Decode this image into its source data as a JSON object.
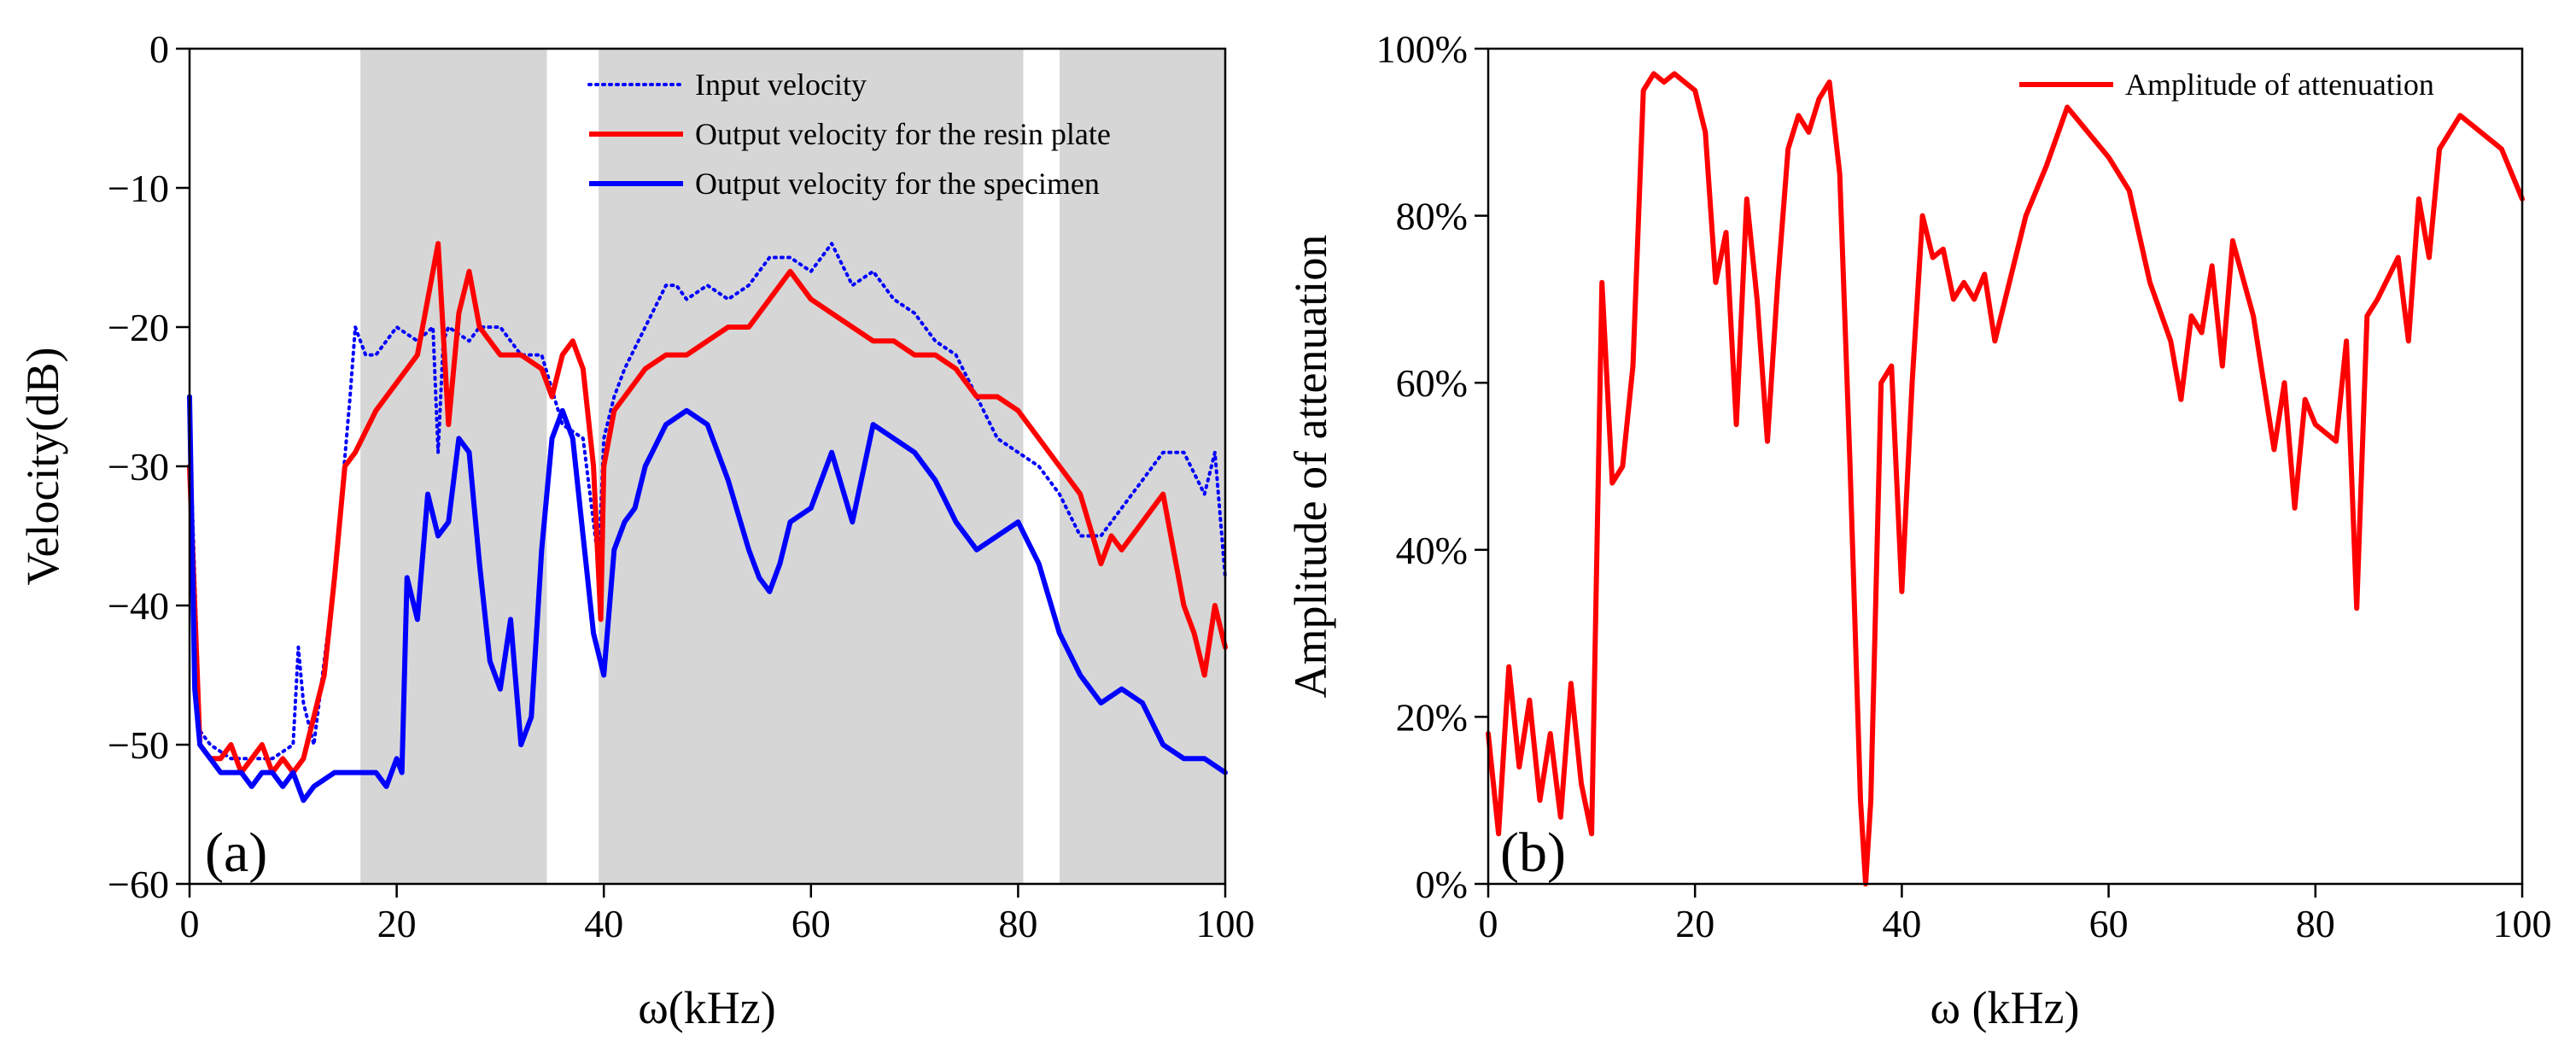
{
  "chart_data": [
    {
      "panel": "(a)",
      "type": "line",
      "xlabel": "ω(kHz)",
      "ylabel": "Velocity(dB)",
      "xlim": [
        0,
        100
      ],
      "ylim": [
        -60,
        0
      ],
      "xticks": [
        0,
        20,
        40,
        60,
        80,
        100
      ],
      "yticks": [
        0,
        -10,
        -20,
        -30,
        -40,
        -50,
        -60
      ],
      "ytick_labels": [
        "0",
        "−10",
        "−20",
        "−30",
        "−40",
        "−50",
        "−60"
      ],
      "shaded_bands": [
        [
          16.5,
          34.5
        ],
        [
          39.5,
          80.5
        ],
        [
          84,
          100
        ]
      ],
      "legend_position": "top-right",
      "series": [
        {
          "name": "Input velocity",
          "style": "dotted",
          "color": "#0000ff",
          "x": [
            0,
            1,
            2,
            4,
            6,
            8,
            10,
            10.5,
            11,
            12,
            14,
            15.5,
            16,
            16.5,
            17,
            18,
            20,
            22,
            23.5,
            24,
            24.5,
            25,
            27,
            28,
            30,
            32,
            34,
            36,
            38,
            39.5,
            40,
            41,
            42,
            44,
            46,
            47,
            48,
            50,
            52,
            54,
            56,
            58,
            60,
            62,
            64,
            66,
            68,
            70,
            72,
            74,
            76,
            78,
            80,
            82,
            84,
            86,
            88,
            90,
            92,
            94,
            96,
            98,
            99,
            100
          ],
          "y": [
            -27,
            -49,
            -50,
            -51,
            -51,
            -51,
            -50,
            -43,
            -47,
            -50,
            -38,
            -25,
            -20,
            -21,
            -22,
            -22,
            -20,
            -21,
            -20,
            -29,
            -21,
            -20,
            -21,
            -20,
            -20,
            -22,
            -22,
            -27,
            -28,
            -37,
            -28,
            -25,
            -23,
            -20,
            -17,
            -17,
            -18,
            -17,
            -18,
            -17,
            -15,
            -15,
            -16,
            -14,
            -17,
            -16,
            -18,
            -19,
            -21,
            -22,
            -25,
            -28,
            -29,
            -30,
            -32,
            -35,
            -35,
            -33,
            -31,
            -29,
            -29,
            -32,
            -29,
            -38
          ]
        },
        {
          "name": "Output velocity for the resin plate",
          "style": "solid",
          "color": "#ff0000",
          "x": [
            0,
            1,
            2,
            3,
            4,
            5,
            6,
            7,
            8,
            9,
            10,
            11,
            12,
            13,
            14,
            15,
            16,
            18,
            20,
            22,
            23,
            24,
            25,
            26,
            27,
            28,
            30,
            32,
            34,
            35,
            36,
            37,
            38,
            39,
            39.7,
            40,
            41,
            42,
            44,
            46,
            48,
            50,
            52,
            54,
            56,
            58,
            60,
            62,
            64,
            66,
            68,
            70,
            72,
            74,
            76,
            78,
            80,
            82,
            84,
            86,
            88,
            89,
            90,
            92,
            94,
            95,
            96,
            97,
            98,
            99,
            100
          ],
          "y": [
            -30,
            -50,
            -51,
            -51,
            -50,
            -52,
            -51,
            -50,
            -52,
            -51,
            -52,
            -51,
            -48,
            -45,
            -38,
            -30,
            -29,
            -26,
            -24,
            -22,
            -18,
            -14,
            -27,
            -19,
            -16,
            -20,
            -22,
            -22,
            -23,
            -25,
            -22,
            -21,
            -23,
            -30,
            -41,
            -30,
            -26,
            -25,
            -23,
            -22,
            -22,
            -21,
            -20,
            -20,
            -18,
            -16,
            -18,
            -19,
            -20,
            -21,
            -21,
            -22,
            -22,
            -23,
            -25,
            -25,
            -26,
            -28,
            -30,
            -32,
            -37,
            -35,
            -36,
            -34,
            -32,
            -36,
            -40,
            -42,
            -45,
            -40,
            -43
          ]
        },
        {
          "name": "Output velocity for the specimen",
          "style": "solid",
          "color": "#0000ff",
          "x": [
            0,
            0.5,
            1,
            2,
            3,
            4,
            5,
            6,
            7,
            8,
            9,
            10,
            11,
            12,
            14,
            16,
            18,
            19,
            20,
            20.5,
            21,
            22,
            23,
            24,
            25,
            26,
            27,
            28,
            29,
            30,
            31,
            32,
            33,
            34,
            35,
            36,
            37,
            38,
            39,
            40,
            41,
            42,
            43,
            44,
            46,
            48,
            50,
            52,
            54,
            55,
            56,
            57,
            58,
            60,
            62,
            64,
            66,
            68,
            70,
            72,
            74,
            76,
            78,
            80,
            82,
            84,
            86,
            88,
            90,
            92,
            94,
            96,
            98,
            100
          ],
          "y": [
            -25,
            -46,
            -50,
            -51,
            -52,
            -52,
            -52,
            -53,
            -52,
            -52,
            -53,
            -52,
            -54,
            -53,
            -52,
            -52,
            -52,
            -53,
            -51,
            -52,
            -38,
            -41,
            -32,
            -35,
            -34,
            -28,
            -29,
            -37,
            -44,
            -46,
            -41,
            -50,
            -48,
            -36,
            -28,
            -26,
            -28,
            -35,
            -42,
            -45,
            -36,
            -34,
            -33,
            -30,
            -27,
            -26,
            -27,
            -31,
            -36,
            -38,
            -39,
            -37,
            -34,
            -33,
            -29,
            -34,
            -27,
            -28,
            -29,
            -31,
            -34,
            -36,
            -35,
            -34,
            -37,
            -42,
            -45,
            -47,
            -46,
            -47,
            -50,
            -51,
            -51,
            -52
          ]
        }
      ]
    },
    {
      "panel": "(b)",
      "type": "line",
      "xlabel": "ω (kHz)",
      "ylabel": "Amplitude of attenuation",
      "xlim": [
        0,
        100
      ],
      "ylim": [
        0,
        100
      ],
      "xticks": [
        0,
        20,
        40,
        60,
        80,
        100
      ],
      "yticks": [
        0,
        20,
        40,
        60,
        80,
        100
      ],
      "ytick_labels": [
        "0%",
        "20%",
        "40%",
        "60%",
        "80%",
        "100%"
      ],
      "legend_position": "top-right",
      "series": [
        {
          "name": "Amplitude of attenuation",
          "style": "solid",
          "color": "#ff0000",
          "x": [
            0,
            1,
            2,
            3,
            4,
            5,
            6,
            7,
            8,
            9,
            10,
            11,
            12,
            13,
            14,
            15,
            16,
            17,
            18,
            20,
            21,
            22,
            23,
            24,
            25,
            26,
            27,
            28,
            29,
            30,
            31,
            32,
            33,
            34,
            35,
            36,
            36.5,
            37,
            38,
            39,
            40,
            41,
            42,
            43,
            44,
            45,
            46,
            47,
            48,
            49,
            50,
            52,
            54,
            56,
            58,
            60,
            62,
            64,
            66,
            67,
            68,
            69,
            70,
            71,
            72,
            74,
            76,
            77,
            78,
            79,
            80,
            81,
            82,
            83,
            84,
            85,
            86,
            88,
            89,
            90,
            91,
            92,
            94,
            96,
            98,
            100
          ],
          "y": [
            18,
            6,
            26,
            14,
            22,
            10,
            18,
            8,
            24,
            12,
            6,
            72,
            48,
            50,
            62,
            95,
            97,
            96,
            97,
            95,
            90,
            72,
            78,
            55,
            82,
            70,
            53,
            72,
            88,
            92,
            90,
            94,
            96,
            85,
            50,
            10,
            0,
            10,
            60,
            62,
            35,
            60,
            80,
            75,
            76,
            70,
            72,
            70,
            73,
            65,
            70,
            80,
            86,
            93,
            90,
            87,
            83,
            72,
            65,
            58,
            68,
            66,
            74,
            62,
            77,
            68,
            52,
            60,
            45,
            58,
            55,
            54,
            53,
            65,
            33,
            68,
            70,
            75,
            65,
            82,
            75,
            88,
            92,
            90,
            88,
            82
          ]
        }
      ]
    }
  ]
}
